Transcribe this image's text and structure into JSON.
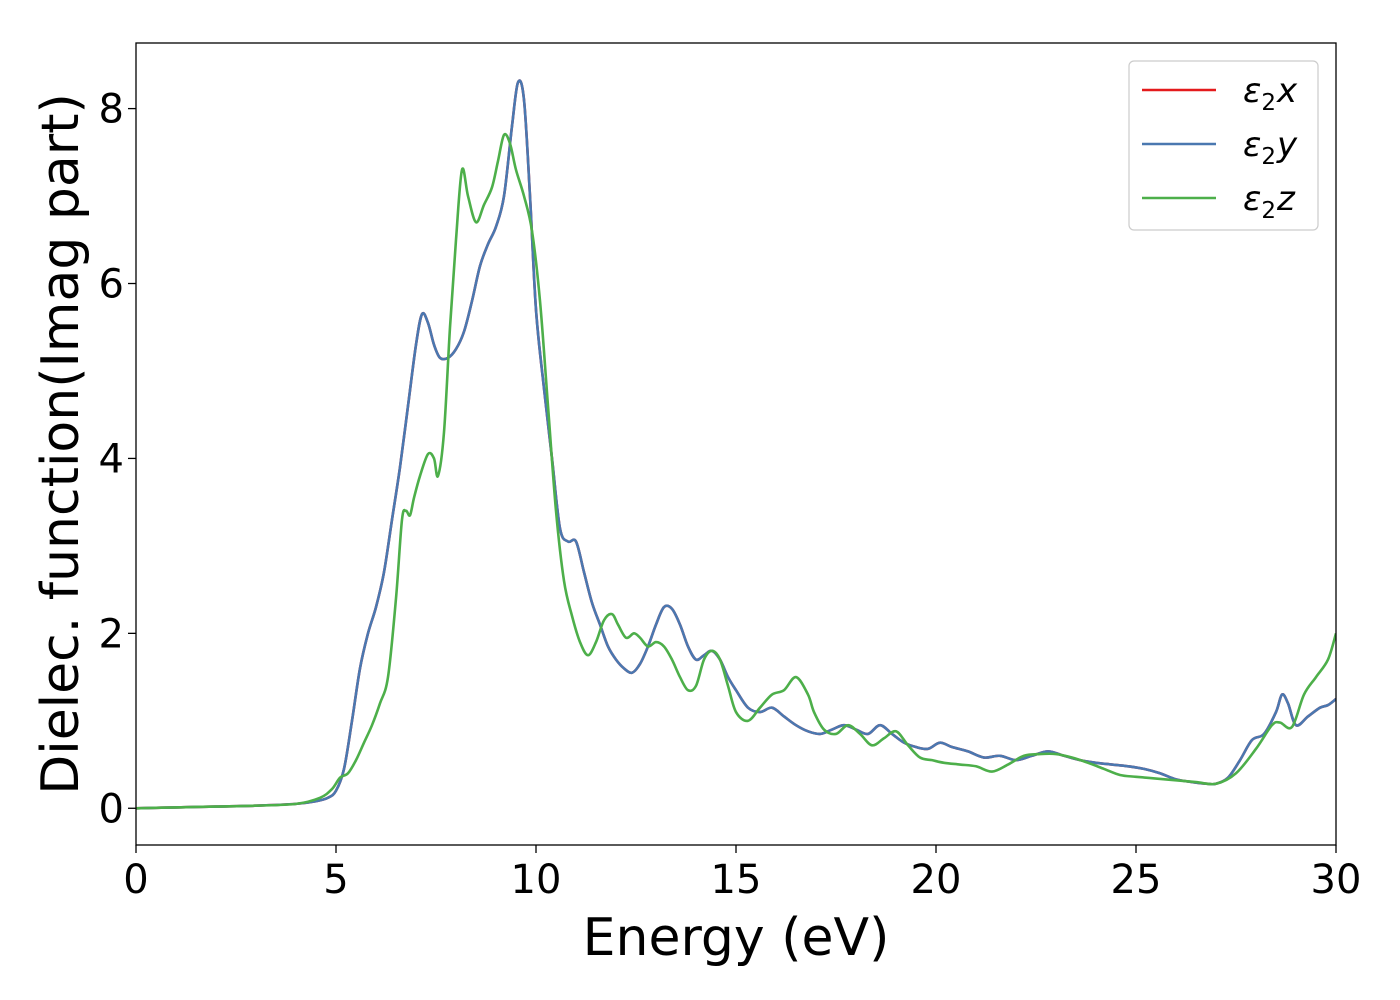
{
  "chart_data": {
    "type": "line",
    "title": "",
    "xlabel": "Energy (eV)",
    "ylabel": "Dielec. function(Imag part)",
    "xlim": [
      0,
      30
    ],
    "ylim": [
      -0.42,
      8.75
    ],
    "x_ticks": [
      0,
      5,
      10,
      15,
      20,
      25,
      30
    ],
    "y_ticks": [
      0,
      2,
      4,
      6,
      8
    ],
    "grid": false,
    "legend_position": "top-right",
    "series": [
      {
        "name": "ε2x",
        "legend_main": "ε",
        "legend_sub": "2",
        "legend_suffix": "x",
        "color": "#e41a1c",
        "x": [
          0,
          1,
          2,
          3,
          4,
          4.5,
          4.8,
          5.0,
          5.2,
          5.4,
          5.6,
          5.8,
          6.0,
          6.2,
          6.4,
          6.6,
          6.8,
          7.0,
          7.15,
          7.3,
          7.45,
          7.6,
          7.8,
          8.0,
          8.2,
          8.4,
          8.6,
          8.8,
          9.0,
          9.2,
          9.4,
          9.55,
          9.7,
          9.85,
          10.0,
          10.2,
          10.4,
          10.6,
          10.8,
          11.0,
          11.2,
          11.4,
          11.6,
          11.8,
          12.0,
          12.2,
          12.4,
          12.6,
          12.8,
          13.0,
          13.2,
          13.4,
          13.6,
          13.8,
          14.0,
          14.2,
          14.4,
          14.6,
          14.8,
          15.0,
          15.3,
          15.6,
          15.9,
          16.2,
          16.5,
          16.8,
          17.1,
          17.4,
          17.7,
          18.0,
          18.3,
          18.6,
          18.9,
          19.2,
          19.5,
          19.8,
          20.1,
          20.4,
          20.8,
          21.2,
          21.6,
          22.0,
          22.4,
          22.8,
          23.2,
          23.6,
          24.0,
          24.4,
          24.8,
          25.2,
          25.6,
          26.0,
          26.4,
          26.8,
          27.0,
          27.3,
          27.6,
          27.9,
          28.2,
          28.5,
          28.65,
          28.8,
          29.0,
          29.3,
          29.6,
          29.8,
          30.0
        ],
        "values": [
          0,
          0.01,
          0.02,
          0.03,
          0.05,
          0.08,
          0.12,
          0.2,
          0.45,
          1.0,
          1.6,
          2.0,
          2.3,
          2.7,
          3.3,
          3.9,
          4.6,
          5.3,
          5.65,
          5.55,
          5.3,
          5.15,
          5.15,
          5.25,
          5.45,
          5.8,
          6.2,
          6.45,
          6.65,
          7.0,
          7.8,
          8.3,
          8.1,
          7.0,
          5.7,
          4.8,
          4.0,
          3.2,
          3.05,
          3.05,
          2.7,
          2.35,
          2.1,
          1.85,
          1.7,
          1.6,
          1.55,
          1.65,
          1.85,
          2.1,
          2.3,
          2.28,
          2.1,
          1.85,
          1.7,
          1.75,
          1.8,
          1.7,
          1.5,
          1.35,
          1.15,
          1.1,
          1.15,
          1.05,
          0.95,
          0.88,
          0.85,
          0.9,
          0.95,
          0.9,
          0.85,
          0.95,
          0.85,
          0.75,
          0.7,
          0.68,
          0.75,
          0.7,
          0.65,
          0.58,
          0.6,
          0.55,
          0.6,
          0.65,
          0.6,
          0.55,
          0.52,
          0.5,
          0.48,
          0.45,
          0.4,
          0.33,
          0.3,
          0.28,
          0.28,
          0.35,
          0.55,
          0.78,
          0.85,
          1.1,
          1.3,
          1.2,
          0.95,
          1.05,
          1.15,
          1.18,
          1.25
        ]
      },
      {
        "name": "ε2y",
        "legend_main": "ε",
        "legend_sub": "2",
        "legend_suffix": "y",
        "color": "#4a78b0",
        "x": [
          0,
          1,
          2,
          3,
          4,
          4.5,
          4.8,
          5.0,
          5.2,
          5.4,
          5.6,
          5.8,
          6.0,
          6.2,
          6.4,
          6.6,
          6.8,
          7.0,
          7.15,
          7.3,
          7.45,
          7.6,
          7.8,
          8.0,
          8.2,
          8.4,
          8.6,
          8.8,
          9.0,
          9.2,
          9.4,
          9.55,
          9.7,
          9.85,
          10.0,
          10.2,
          10.4,
          10.6,
          10.8,
          11.0,
          11.2,
          11.4,
          11.6,
          11.8,
          12.0,
          12.2,
          12.4,
          12.6,
          12.8,
          13.0,
          13.2,
          13.4,
          13.6,
          13.8,
          14.0,
          14.2,
          14.4,
          14.6,
          14.8,
          15.0,
          15.3,
          15.6,
          15.9,
          16.2,
          16.5,
          16.8,
          17.1,
          17.4,
          17.7,
          18.0,
          18.3,
          18.6,
          18.9,
          19.2,
          19.5,
          19.8,
          20.1,
          20.4,
          20.8,
          21.2,
          21.6,
          22.0,
          22.4,
          22.8,
          23.2,
          23.6,
          24.0,
          24.4,
          24.8,
          25.2,
          25.6,
          26.0,
          26.4,
          26.8,
          27.0,
          27.3,
          27.6,
          27.9,
          28.2,
          28.5,
          28.65,
          28.8,
          29.0,
          29.3,
          29.6,
          29.8,
          30.0
        ],
        "values": [
          0,
          0.01,
          0.02,
          0.03,
          0.05,
          0.08,
          0.12,
          0.2,
          0.45,
          1.0,
          1.6,
          2.0,
          2.3,
          2.7,
          3.3,
          3.9,
          4.6,
          5.3,
          5.65,
          5.55,
          5.3,
          5.15,
          5.15,
          5.25,
          5.45,
          5.8,
          6.2,
          6.45,
          6.65,
          7.0,
          7.8,
          8.3,
          8.1,
          7.0,
          5.7,
          4.8,
          4.0,
          3.2,
          3.05,
          3.05,
          2.7,
          2.35,
          2.1,
          1.85,
          1.7,
          1.6,
          1.55,
          1.65,
          1.85,
          2.1,
          2.3,
          2.28,
          2.1,
          1.85,
          1.7,
          1.75,
          1.8,
          1.7,
          1.5,
          1.35,
          1.15,
          1.1,
          1.15,
          1.05,
          0.95,
          0.88,
          0.85,
          0.9,
          0.95,
          0.9,
          0.85,
          0.95,
          0.85,
          0.75,
          0.7,
          0.68,
          0.75,
          0.7,
          0.65,
          0.58,
          0.6,
          0.55,
          0.6,
          0.65,
          0.6,
          0.55,
          0.52,
          0.5,
          0.48,
          0.45,
          0.4,
          0.33,
          0.3,
          0.28,
          0.28,
          0.35,
          0.55,
          0.78,
          0.85,
          1.1,
          1.3,
          1.2,
          0.95,
          1.05,
          1.15,
          1.18,
          1.25
        ]
      },
      {
        "name": "ε2z",
        "legend_main": "ε",
        "legend_sub": "2",
        "legend_suffix": "z",
        "color": "#4daf4a",
        "x": [
          0,
          1,
          2,
          3,
          4,
          4.6,
          4.9,
          5.1,
          5.3,
          5.5,
          5.7,
          5.9,
          6.1,
          6.3,
          6.5,
          6.65,
          6.75,
          6.85,
          6.95,
          7.1,
          7.3,
          7.45,
          7.55,
          7.7,
          7.85,
          8.0,
          8.15,
          8.3,
          8.5,
          8.7,
          8.9,
          9.05,
          9.2,
          9.35,
          9.5,
          9.7,
          9.9,
          10.1,
          10.3,
          10.5,
          10.7,
          10.9,
          11.1,
          11.3,
          11.5,
          11.7,
          11.9,
          12.05,
          12.25,
          12.45,
          12.6,
          12.8,
          13.0,
          13.2,
          13.4,
          13.6,
          13.8,
          14.0,
          14.2,
          14.4,
          14.6,
          14.8,
          15.0,
          15.3,
          15.6,
          15.9,
          16.2,
          16.5,
          16.8,
          16.95,
          17.2,
          17.5,
          17.8,
          18.1,
          18.4,
          18.7,
          19.0,
          19.3,
          19.6,
          19.9,
          20.2,
          20.6,
          21.0,
          21.4,
          21.8,
          22.2,
          22.6,
          23.0,
          23.4,
          23.8,
          24.2,
          24.6,
          25.0,
          25.5,
          26.0,
          26.5,
          27.0,
          27.5,
          28.0,
          28.4,
          28.6,
          28.9,
          29.2,
          29.5,
          29.8,
          30.0
        ],
        "values": [
          0,
          0.01,
          0.02,
          0.03,
          0.05,
          0.12,
          0.22,
          0.35,
          0.4,
          0.55,
          0.75,
          0.95,
          1.2,
          1.5,
          2.4,
          3.3,
          3.4,
          3.35,
          3.55,
          3.8,
          4.05,
          4.0,
          3.8,
          4.3,
          5.5,
          6.5,
          7.3,
          7.0,
          6.7,
          6.9,
          7.1,
          7.4,
          7.7,
          7.6,
          7.3,
          7.0,
          6.6,
          5.8,
          4.6,
          3.4,
          2.6,
          2.2,
          1.9,
          1.75,
          1.9,
          2.15,
          2.22,
          2.1,
          1.95,
          2.0,
          1.95,
          1.85,
          1.9,
          1.85,
          1.7,
          1.5,
          1.35,
          1.4,
          1.7,
          1.8,
          1.7,
          1.4,
          1.1,
          1.0,
          1.15,
          1.3,
          1.35,
          1.5,
          1.3,
          1.1,
          0.9,
          0.85,
          0.95,
          0.85,
          0.72,
          0.8,
          0.88,
          0.72,
          0.58,
          0.55,
          0.52,
          0.5,
          0.48,
          0.42,
          0.5,
          0.6,
          0.62,
          0.62,
          0.58,
          0.52,
          0.45,
          0.38,
          0.36,
          0.34,
          0.32,
          0.3,
          0.28,
          0.4,
          0.68,
          0.95,
          0.98,
          0.93,
          1.3,
          1.5,
          1.7,
          2.0
        ]
      }
    ]
  }
}
